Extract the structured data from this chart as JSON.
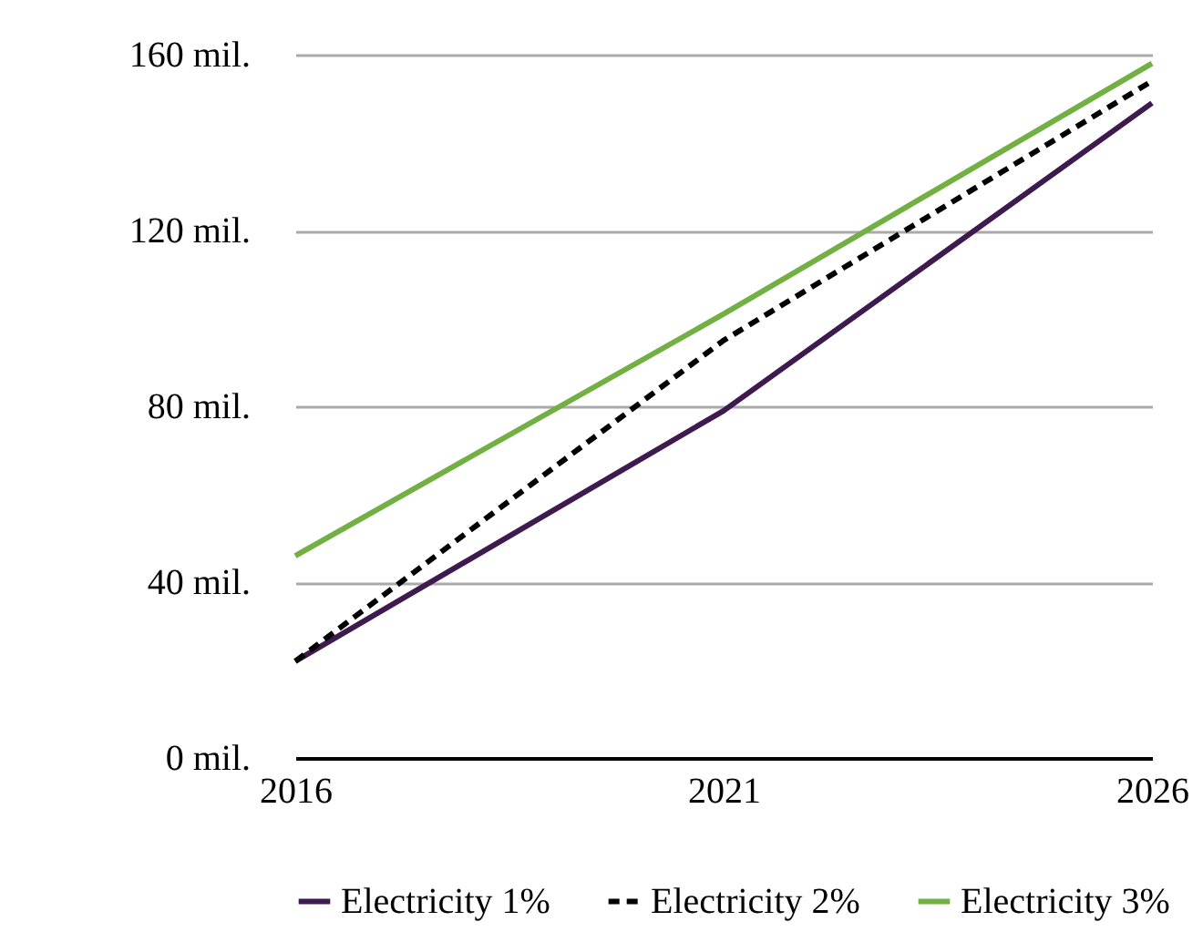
{
  "chart_data": {
    "type": "line",
    "x": [
      2016,
      2021,
      2026
    ],
    "xlim": [
      2016,
      2026
    ],
    "xticks": [
      2016,
      2021,
      2026
    ],
    "ylim": [
      0,
      160
    ],
    "yticks": [
      {
        "value": 0,
        "label": "0 mil."
      },
      {
        "value": 40,
        "label": "40 mil."
      },
      {
        "value": 80,
        "label": "80 mil."
      },
      {
        "value": 120,
        "label": "120 mil."
      },
      {
        "value": 160,
        "label": "160 mil."
      }
    ],
    "grid": "y",
    "legend": "bottom",
    "marker": "none",
    "series": [
      {
        "name": "Electricity 1%",
        "color": "#3f1a4e",
        "values": [
          22,
          79,
          149
        ],
        "line_style": "solid"
      },
      {
        "name": "Electricity 2%",
        "color": "#000000",
        "values": [
          22,
          95,
          154
        ],
        "line_style": "dashed"
      },
      {
        "name": "Electricity 3%",
        "color": "#72b043",
        "values": [
          46,
          101,
          158
        ],
        "line_style": "solid"
      }
    ]
  }
}
